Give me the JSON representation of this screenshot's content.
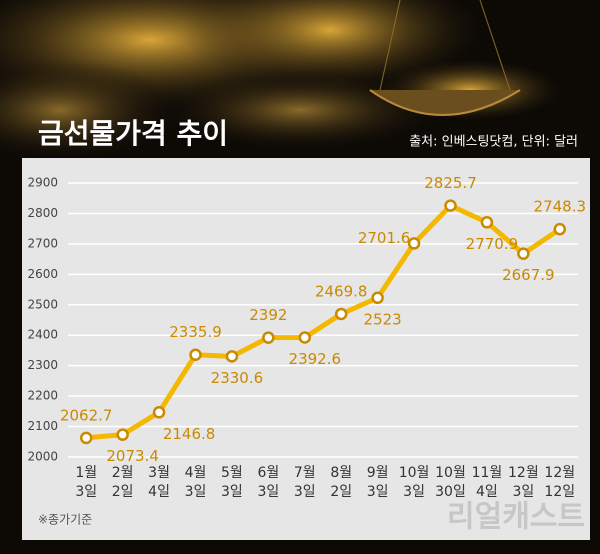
{
  "chart_data": {
    "type": "line",
    "title": "금선물가격 추이",
    "source": "출처: 인베스팅닷컴, 단위: 달러",
    "note": "※종가기준",
    "watermark": "리얼캐스트",
    "categories": [
      [
        "1월",
        "3일"
      ],
      [
        "2월",
        "2일"
      ],
      [
        "3월",
        "4일"
      ],
      [
        "4월",
        "3일"
      ],
      [
        "5월",
        "3일"
      ],
      [
        "6월",
        "3일"
      ],
      [
        "7월",
        "3일"
      ],
      [
        "8월",
        "2일"
      ],
      [
        "9월",
        "3일"
      ],
      [
        "10월",
        "3일"
      ],
      [
        "10월",
        "30일"
      ],
      [
        "11월",
        "4일"
      ],
      [
        "12월",
        "3일"
      ],
      [
        "12월",
        "12일"
      ]
    ],
    "values": [
      2062.7,
      2073.4,
      2146.8,
      2335.9,
      2330.6,
      2392,
      2392.6,
      2469.8,
      2523,
      2701.6,
      2825.7,
      2770.9,
      2667.9,
      2748.3
    ],
    "color": "#f5b800",
    "label_color": "#c98a00",
    "ylim": [
      2000,
      2900
    ],
    "yticks": [
      2000,
      2100,
      2200,
      2300,
      2400,
      2500,
      2600,
      2700,
      2800,
      2900
    ],
    "grid": true
  }
}
